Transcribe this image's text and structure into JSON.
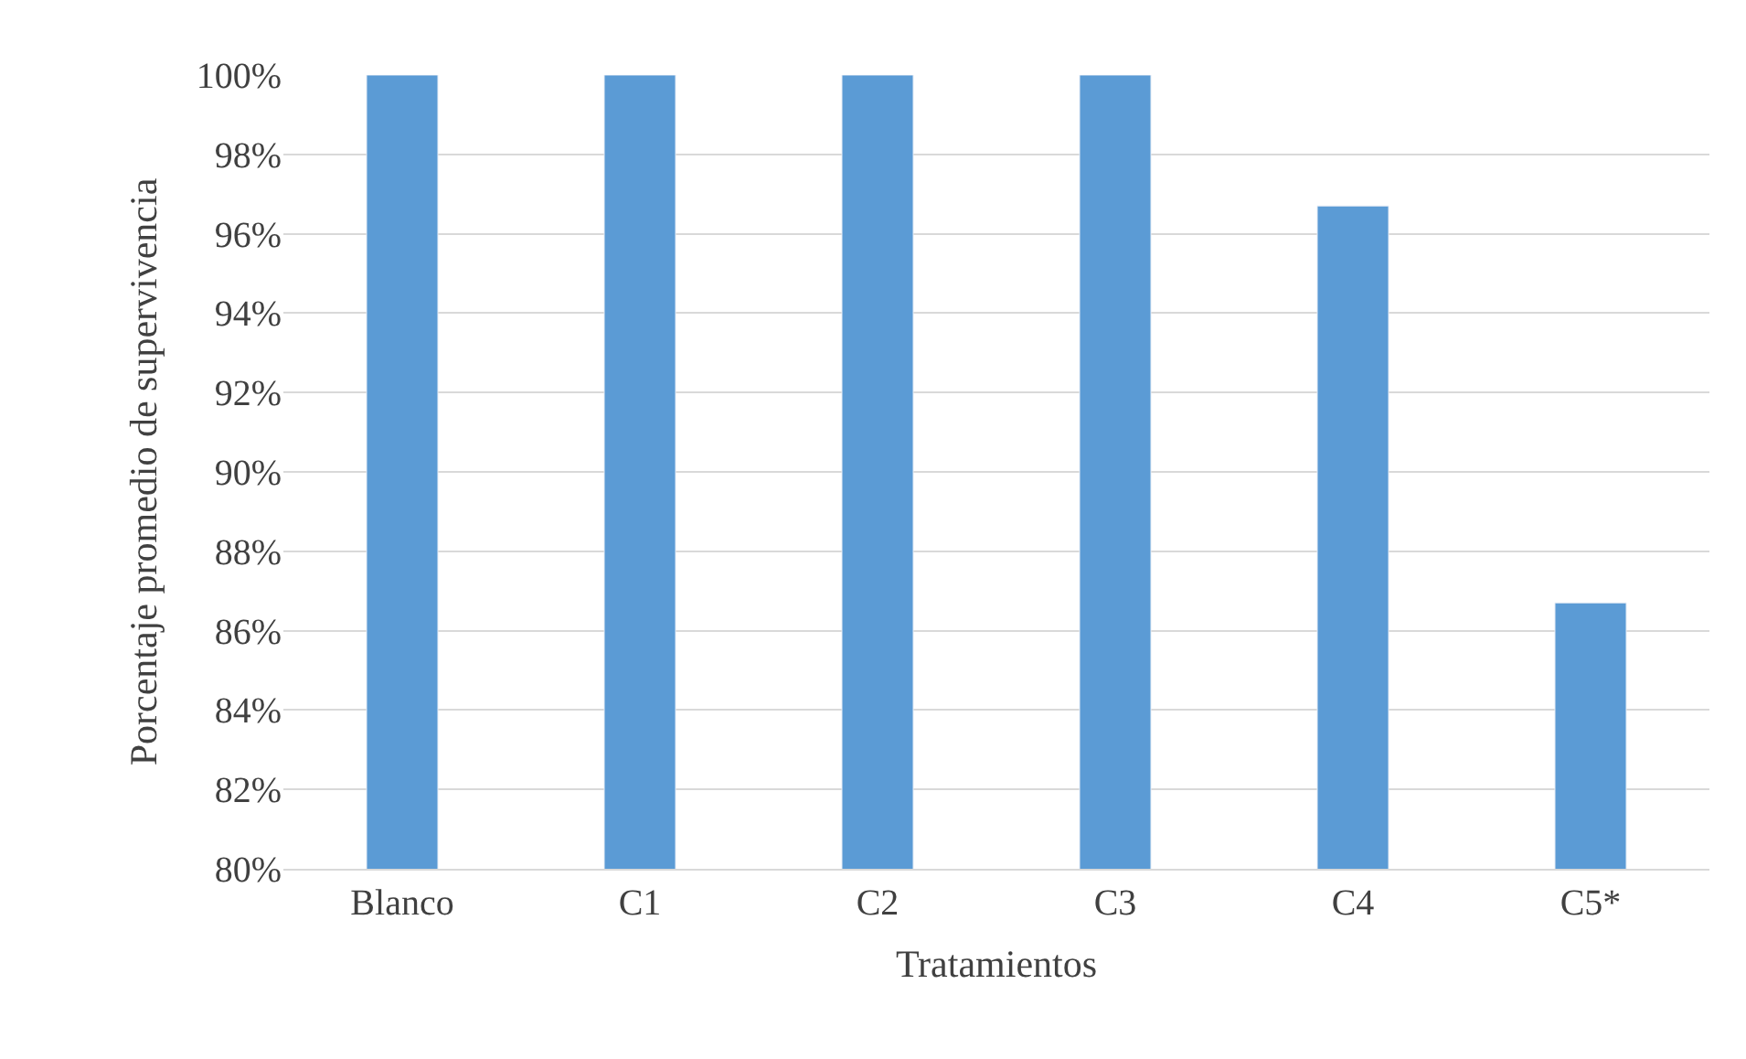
{
  "chart_data": {
    "type": "bar",
    "xlabel": "Tratamientos",
    "ylabel": "Porcentaje promedio de supervivencia",
    "categories": [
      "Blanco",
      "C1",
      "C2",
      "C3",
      "C4",
      "C5*"
    ],
    "values": [
      100,
      100,
      100,
      100,
      96.7,
      86.7
    ],
    "color": "#5b9bd5",
    "ylim": [
      80,
      100
    ],
    "yticks": [
      {
        "value": 80,
        "label": "80%"
      },
      {
        "value": 82,
        "label": "82%"
      },
      {
        "value": 84,
        "label": "84%"
      },
      {
        "value": 86,
        "label": "86%"
      },
      {
        "value": 88,
        "label": "88%"
      },
      {
        "value": 90,
        "label": "90%"
      },
      {
        "value": 92,
        "label": "92%"
      },
      {
        "value": 94,
        "label": "94%"
      },
      {
        "value": 96,
        "label": "96%"
      },
      {
        "value": 98,
        "label": "98%"
      },
      {
        "value": 100,
        "label": "100%"
      }
    ],
    "grid": "y",
    "legend": false
  }
}
